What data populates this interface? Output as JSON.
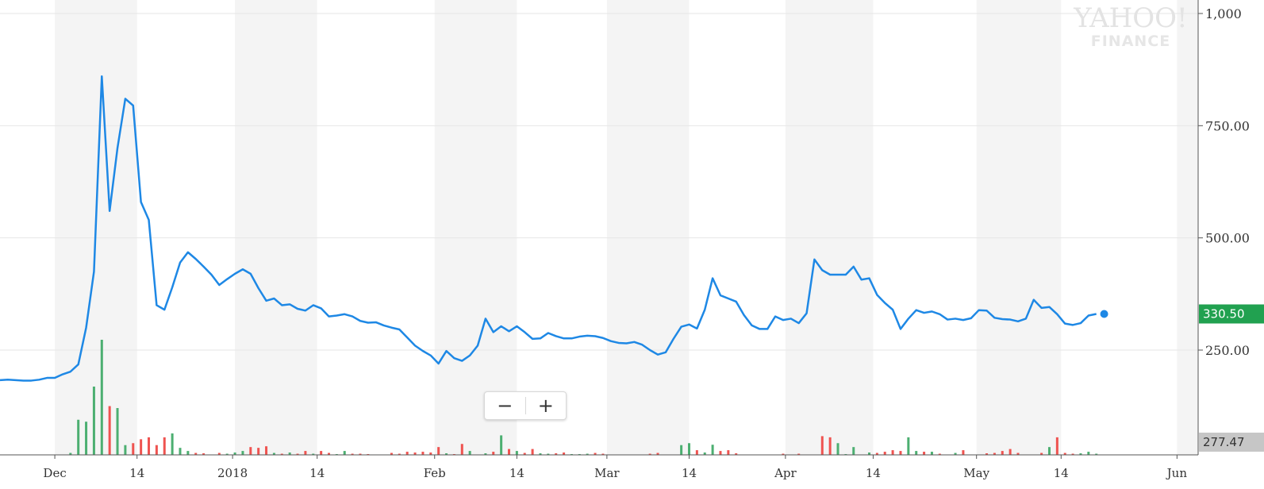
{
  "chart_data": {
    "type": "line",
    "title": "",
    "xlabel": "",
    "ylabel": "",
    "ylim": [
      0,
      1000
    ],
    "yticks": [
      250,
      500,
      750,
      1000
    ],
    "ytick_labels": [
      "250.00",
      "500.00",
      "750.00",
      "1,000"
    ],
    "xticks": [
      {
        "label": "Dec",
        "t": 7
      },
      {
        "label": "14",
        "t": 17.5
      },
      {
        "label": "2018",
        "t": 29.7
      },
      {
        "label": "14",
        "t": 40.5
      },
      {
        "label": "Feb",
        "t": 55.5
      },
      {
        "label": "14",
        "t": 66
      },
      {
        "label": "Mar",
        "t": 77.5
      },
      {
        "label": "14",
        "t": 88
      },
      {
        "label": "Apr",
        "t": 100.3
      },
      {
        "label": "14",
        "t": 111.5
      },
      {
        "label": "May",
        "t": 124.7
      },
      {
        "label": "14",
        "t": 135.5
      },
      {
        "label": "Jun",
        "t": 150.3
      }
    ],
    "shade_bands": [
      [
        7,
        17.5
      ],
      [
        30,
        40.5
      ],
      [
        55.5,
        66
      ],
      [
        77.5,
        88
      ],
      [
        100.3,
        111.5
      ],
      [
        124.7,
        135.5
      ],
      [
        150.3,
        153
      ]
    ],
    "t_range": [
      0,
      153
    ],
    "series": [
      {
        "color": "#1e88e5",
        "points": [
          [
            0,
            183
          ],
          [
            1,
            184
          ],
          [
            2,
            183
          ],
          [
            3,
            182
          ],
          [
            4,
            182
          ],
          [
            5,
            184
          ],
          [
            6,
            188
          ],
          [
            7,
            188
          ],
          [
            8,
            196
          ],
          [
            9,
            202
          ],
          [
            10,
            218
          ],
          [
            11,
            300
          ],
          [
            12,
            425
          ],
          [
            13,
            860
          ],
          [
            14,
            560
          ],
          [
            15,
            700
          ],
          [
            16,
            810
          ],
          [
            17,
            795
          ],
          [
            18,
            580
          ],
          [
            19,
            540
          ],
          [
            20,
            350
          ],
          [
            21,
            340
          ],
          [
            22,
            390
          ],
          [
            23,
            445
          ],
          [
            24,
            468
          ],
          [
            25,
            453
          ],
          [
            26,
            436
          ],
          [
            27,
            418
          ],
          [
            28,
            395
          ],
          [
            29,
            408
          ],
          [
            30,
            420
          ],
          [
            31,
            430
          ],
          [
            32,
            420
          ],
          [
            33,
            388
          ],
          [
            34,
            360
          ],
          [
            35,
            365
          ],
          [
            36,
            350
          ],
          [
            37,
            352
          ],
          [
            38,
            342
          ],
          [
            39,
            338
          ],
          [
            40,
            350
          ],
          [
            41,
            343
          ],
          [
            42,
            325
          ],
          [
            43,
            327
          ],
          [
            44,
            330
          ],
          [
            45,
            325
          ],
          [
            46,
            315
          ],
          [
            47,
            311
          ],
          [
            48,
            312
          ],
          [
            49,
            305
          ],
          [
            50,
            300
          ],
          [
            51,
            296
          ],
          [
            52,
            278
          ],
          [
            53,
            260
          ],
          [
            54,
            248
          ],
          [
            55,
            238
          ],
          [
            56,
            220
          ],
          [
            57,
            248
          ],
          [
            58,
            232
          ],
          [
            59,
            226
          ],
          [
            60,
            238
          ],
          [
            61,
            260
          ],
          [
            62,
            320
          ],
          [
            63,
            290
          ],
          [
            64,
            303
          ],
          [
            65,
            292
          ],
          [
            66,
            303
          ],
          [
            67,
            290
          ],
          [
            68,
            275
          ],
          [
            69,
            276
          ],
          [
            70,
            288
          ],
          [
            71,
            281
          ],
          [
            72,
            276
          ],
          [
            73,
            276
          ],
          [
            74,
            280
          ],
          [
            75,
            282
          ],
          [
            76,
            281
          ],
          [
            77,
            277
          ],
          [
            78,
            270
          ],
          [
            79,
            266
          ],
          [
            80,
            265
          ],
          [
            81,
            268
          ],
          [
            82,
            262
          ],
          [
            83,
            250
          ],
          [
            84,
            240
          ],
          [
            85,
            245
          ],
          [
            86,
            275
          ],
          [
            87,
            302
          ],
          [
            88,
            307
          ],
          [
            89,
            298
          ],
          [
            90,
            340
          ],
          [
            91,
            410
          ],
          [
            92,
            372
          ],
          [
            93,
            365
          ],
          [
            94,
            358
          ],
          [
            95,
            328
          ],
          [
            96,
            305
          ],
          [
            97,
            297
          ],
          [
            98,
            297
          ],
          [
            99,
            325
          ],
          [
            100,
            317
          ],
          [
            101,
            320
          ],
          [
            102,
            310
          ],
          [
            103,
            332
          ],
          [
            104,
            452
          ],
          [
            105,
            428
          ],
          [
            106,
            418
          ],
          [
            107,
            418
          ],
          [
            108,
            418
          ],
          [
            109,
            436
          ],
          [
            110,
            407
          ],
          [
            111,
            410
          ],
          [
            112,
            373
          ],
          [
            113,
            355
          ],
          [
            114,
            340
          ],
          [
            115,
            297
          ],
          [
            116,
            320
          ],
          [
            117,
            339
          ],
          [
            118,
            333
          ],
          [
            119,
            336
          ],
          [
            120,
            330
          ],
          [
            121,
            318
          ],
          [
            122,
            320
          ],
          [
            123,
            317
          ],
          [
            124,
            321
          ],
          [
            125,
            339
          ],
          [
            126,
            338
          ],
          [
            127,
            322
          ],
          [
            128,
            319
          ],
          [
            129,
            318
          ],
          [
            130,
            314
          ],
          [
            131,
            320
          ],
          [
            132,
            362
          ],
          [
            133,
            344
          ],
          [
            134,
            346
          ],
          [
            135,
            330
          ],
          [
            136,
            309
          ],
          [
            137,
            306
          ],
          [
            138,
            310
          ],
          [
            139,
            327
          ],
          [
            140,
            330.5
          ]
        ]
      }
    ],
    "last_price": "330.50",
    "volume_label": "277.47",
    "volume": {
      "t": [
        9,
        10,
        11,
        12,
        13,
        14,
        15,
        16,
        17,
        18,
        19,
        20,
        21,
        22,
        23,
        24,
        25,
        26,
        28,
        29,
        30,
        31,
        32,
        33,
        34,
        35,
        36,
        37,
        38,
        39,
        40,
        41,
        42,
        43,
        44,
        45,
        46,
        47,
        50,
        51,
        52,
        53,
        54,
        55,
        56,
        57,
        58,
        59,
        60,
        62,
        63,
        64,
        65,
        66,
        67,
        68,
        69,
        70,
        71,
        72,
        73,
        74,
        75,
        76,
        77,
        83,
        84,
        87,
        88,
        89,
        90,
        91,
        92,
        93,
        94,
        100,
        102,
        105,
        106,
        107,
        108,
        109,
        111,
        112,
        113,
        114,
        115,
        116,
        117,
        118,
        119,
        120,
        122,
        123,
        126,
        127,
        128,
        129,
        130,
        133,
        134,
        135,
        136,
        137,
        138,
        139,
        140
      ],
      "values": [
        5,
        90,
        85,
        175,
        295,
        125,
        120,
        25,
        30,
        40,
        45,
        25,
        45,
        55,
        18,
        10,
        5,
        4,
        5,
        3,
        6,
        10,
        20,
        18,
        22,
        5,
        3,
        6,
        3,
        10,
        3,
        10,
        5,
        2,
        10,
        3,
        3,
        2,
        5,
        3,
        8,
        6,
        8,
        6,
        20,
        4,
        2,
        28,
        10,
        4,
        8,
        50,
        15,
        10,
        5,
        15,
        4,
        3,
        4,
        6,
        2,
        2,
        3,
        5,
        3,
        3,
        5,
        25,
        30,
        12,
        6,
        26,
        10,
        12,
        4,
        3,
        3,
        48,
        45,
        30,
        2,
        20,
        6,
        5,
        8,
        12,
        10,
        45,
        10,
        8,
        8,
        3,
        5,
        12,
        4,
        5,
        10,
        15,
        5,
        5,
        20,
        45,
        5,
        3,
        4,
        8,
        3
      ]
    }
  }
}
